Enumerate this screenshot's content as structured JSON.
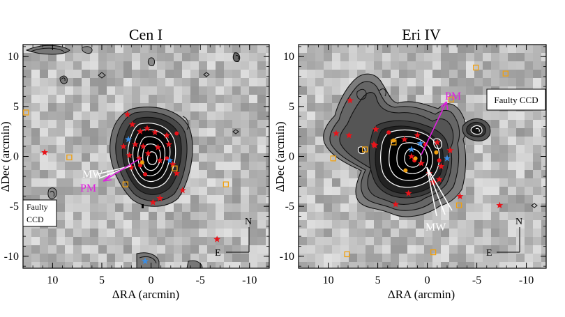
{
  "chart_data": [
    {
      "type": "scatter",
      "title": "Cen I",
      "xlabel": "ΔRA (arcmin)",
      "ylabel": "ΔDec (arcmin)",
      "xlim": [
        13,
        -12
      ],
      "ylim": [
        -11.2,
        11.2
      ],
      "xticks": [
        10,
        5,
        0,
        -5,
        -10
      ],
      "yticks": [
        10,
        5,
        0,
        -5,
        -10
      ],
      "background": "grayscale density map with contours",
      "grid": false,
      "colors": {
        "red_star": "#e8141b",
        "orange": "#f0a010",
        "blue_star": "#3a8ee6",
        "pm_arrow": "#e020e0",
        "mw_arrow": "#ffffff",
        "contour_outer": "#111111",
        "contour_inner": "#ffffff"
      },
      "series": [
        {
          "marker": "red-star",
          "points": [
            [
              2.4,
              4.2
            ],
            [
              1.9,
              3.2
            ],
            [
              1.1,
              2.5
            ],
            [
              0.4,
              2.8
            ],
            [
              -0.4,
              2.4
            ],
            [
              -1.6,
              2.1
            ],
            [
              2.8,
              1.0
            ],
            [
              1.6,
              1.2
            ],
            [
              0.8,
              1.0
            ],
            [
              -0.7,
              0.9
            ],
            [
              -1.8,
              1.2
            ],
            [
              2.2,
              0.1
            ],
            [
              1.2,
              -0.2
            ],
            [
              0.3,
              0.3
            ],
            [
              -0.9,
              -0.4
            ],
            [
              -2.2,
              -0.8
            ],
            [
              2.0,
              -1.1
            ],
            [
              -2.6,
              -1.7
            ],
            [
              -3.2,
              -3.4
            ],
            [
              -0.9,
              -4.2
            ],
            [
              -0.2,
              -4.6
            ],
            [
              10.8,
              0.4
            ],
            [
              -6.7,
              -8.3
            ]
          ]
        },
        {
          "marker": "red-dot",
          "points": [
            [
              1.1,
              -0.9
            ],
            [
              0.6,
              -1.8
            ],
            [
              -1.6,
              -0.2
            ],
            [
              -2.6,
              2.3
            ]
          ]
        },
        {
          "marker": "blue-star",
          "points": [
            [
              2.3,
              1.7
            ],
            [
              -1.9,
              -0.4
            ],
            [
              0.6,
              -10.5
            ]
          ]
        },
        {
          "marker": "orange-dot",
          "points": [
            [
              0.9,
              -0.6
            ]
          ]
        },
        {
          "marker": "orange-square",
          "points": [
            [
              8.3,
              -0.1
            ],
            [
              -2.4,
              -1.2
            ],
            [
              -7.6,
              -2.8
            ],
            [
              2.6,
              -2.8
            ],
            [
              12.7,
              4.4
            ]
          ]
        }
      ],
      "annotations": [
        {
          "text": "MW",
          "color": "#ffffff"
        },
        {
          "text": "PM",
          "color": "#e020e0"
        },
        {
          "text": "Faulty\nCCD",
          "boxed": true
        },
        {
          "text": "N"
        },
        {
          "text": "E"
        }
      ]
    },
    {
      "type": "scatter",
      "title": "Eri IV",
      "xlabel": "ΔRA (arcmin)",
      "ylabel": "ΔDec (arcmin)",
      "xlim": [
        13,
        -12
      ],
      "ylim": [
        -11.2,
        11.2
      ],
      "xticks": [
        10,
        5,
        0,
        -5,
        -10
      ],
      "yticks": [
        10,
        5,
        0,
        -5,
        -10
      ],
      "background": "grayscale density map with contours",
      "grid": false,
      "colors": {
        "red_star": "#e8141b",
        "orange": "#f0a010",
        "blue_star": "#3a8ee6",
        "pm_arrow": "#e020e0",
        "mw_arrow": "#ffffff",
        "contour_outer": "#111111",
        "contour_inner": "#ffffff"
      },
      "series": [
        {
          "marker": "red-star",
          "points": [
            [
              7.8,
              5.6
            ],
            [
              9.2,
              2.3
            ],
            [
              7.9,
              2.1
            ],
            [
              5.2,
              2.7
            ],
            [
              5.3,
              1.1
            ],
            [
              2.3,
              1.7
            ],
            [
              1.0,
              2.1
            ],
            [
              -1.0,
              1.4
            ],
            [
              -2.3,
              0.6
            ],
            [
              1.6,
              0.0
            ],
            [
              0.6,
              -0.7
            ],
            [
              -1.4,
              -1.0
            ],
            [
              -0.2,
              -1.7
            ],
            [
              -1.2,
              -2.3
            ],
            [
              -0.6,
              -2.6
            ],
            [
              1.9,
              -3.7
            ],
            [
              -3.3,
              -4.0
            ],
            [
              -7.3,
              -4.9
            ],
            [
              3.2,
              -4.8
            ],
            [
              5.4,
              1.2
            ]
          ]
        },
        {
          "marker": "red-dot",
          "points": [
            [
              3.9,
              2.4
            ],
            [
              -1.2,
              -0.4
            ],
            [
              1.3,
              -0.4
            ],
            [
              0.2,
              1.2
            ]
          ]
        },
        {
          "marker": "blue-star",
          "points": [
            [
              0.7,
              1.3
            ],
            [
              -2.0,
              -0.2
            ],
            [
              1.6,
              0.7
            ]
          ]
        },
        {
          "marker": "orange-dot",
          "points": [
            [
              1.2,
              -0.2
            ],
            [
              -0.9,
              0.4
            ],
            [
              2.2,
              -1.4
            ],
            [
              3.4,
              1.6
            ]
          ]
        },
        {
          "marker": "orange-square",
          "points": [
            [
              9.5,
              -0.2
            ],
            [
              6.3,
              0.7
            ],
            [
              3.4,
              1.4
            ],
            [
              -2.4,
              5.7
            ],
            [
              -4.9,
              8.9
            ],
            [
              -7.9,
              8.3
            ],
            [
              -3.2,
              -4.9
            ],
            [
              8.1,
              -9.8
            ],
            [
              -0.6,
              -9.6
            ]
          ]
        }
      ],
      "annotations": [
        {
          "text": "MW",
          "color": "#ffffff"
        },
        {
          "text": "PM",
          "color": "#e020e0"
        },
        {
          "text": "Faulty CCD",
          "boxed": true
        },
        {
          "text": "N"
        },
        {
          "text": "E"
        }
      ]
    }
  ]
}
